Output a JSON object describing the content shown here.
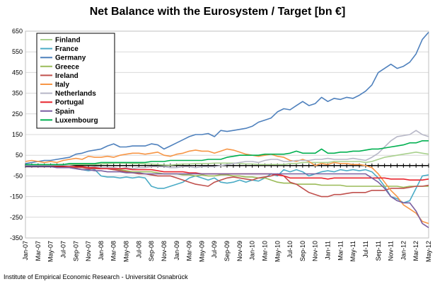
{
  "chart_data": {
    "type": "line",
    "title": "Net Balance with the Eurosystem / Target [bn €]",
    "footer": "Institute of Empirical Economic Research - Universität Osnabrück",
    "ylim": [
      -350,
      650
    ],
    "yticks": [
      650,
      550,
      450,
      350,
      250,
      150,
      50,
      -50,
      -150,
      -250,
      -350
    ],
    "grid": true,
    "legend_position": "top-left",
    "x": [
      "Jan-07",
      "Feb-07",
      "Mar-07",
      "Apr-07",
      "May-07",
      "Jun-07",
      "Jul-07",
      "Aug-07",
      "Sep-07",
      "Oct-07",
      "Nov-07",
      "Dec-07",
      "Jan-08",
      "Feb-08",
      "Mar-08",
      "Apr-08",
      "May-08",
      "Jun-08",
      "Jul-08",
      "Aug-08",
      "Sep-08",
      "Oct-08",
      "Nov-08",
      "Dec-08",
      "Jan-09",
      "Feb-09",
      "Mar-09",
      "Apr-09",
      "May-09",
      "Jun-09",
      "Jul-09",
      "Aug-09",
      "Sep-09",
      "Oct-09",
      "Nov-09",
      "Dec-09",
      "Jan-10",
      "Feb-10",
      "Mar-10",
      "Apr-10",
      "May-10",
      "Jun-10",
      "Jul-10",
      "Aug-10",
      "Sep-10",
      "Oct-10",
      "Nov-10",
      "Dec-10",
      "Jan-11",
      "Feb-11",
      "Mar-11",
      "Apr-11",
      "May-11",
      "Jun-11",
      "Jul-11",
      "Aug-11",
      "Sep-11",
      "Oct-11",
      "Nov-11",
      "Dec-11",
      "Jan-12",
      "Feb-12",
      "Mar-12",
      "Apr-12",
      "May-12"
    ],
    "xtick_labels": [
      "Jan-07",
      "Mar-07",
      "May-07",
      "Jul-07",
      "Sep-07",
      "Nov-07",
      "Jan-08",
      "Mar-08",
      "May-08",
      "Jul-08",
      "Sep-08",
      "Nov-08",
      "Jan-09",
      "Mar-09",
      "May-09",
      "Jul-09",
      "Sep-09",
      "Nov-09",
      "Jan-10",
      "Mar-10",
      "May-10",
      "Jul-10",
      "Sep-10",
      "Nov-10",
      "Jan-11",
      "Mar-11",
      "May-11",
      "Jul-11",
      "Sep-11",
      "Nov-11",
      "Jan-12",
      "Mar-12",
      "May-12"
    ],
    "series": [
      {
        "name": "Finland",
        "color": "#a9d18e",
        "values": [
          5,
          5,
          5,
          5,
          5,
          5,
          5,
          5,
          5,
          5,
          5,
          5,
          8,
          10,
          12,
          12,
          12,
          10,
          10,
          8,
          8,
          5,
          3,
          2,
          5,
          8,
          8,
          10,
          10,
          10,
          12,
          12,
          12,
          12,
          10,
          8,
          8,
          5,
          5,
          5,
          5,
          5,
          10,
          10,
          15,
          15,
          15,
          15,
          15,
          20,
          20,
          20,
          20,
          20,
          15,
          20,
          30,
          40,
          45,
          50,
          55,
          60,
          65,
          60,
          55
        ]
      },
      {
        "name": "France",
        "color": "#4bacc6",
        "values": [
          -5,
          -5,
          -5,
          -5,
          -5,
          -5,
          -5,
          -10,
          -15,
          -20,
          -25,
          -20,
          -50,
          -55,
          -55,
          -60,
          -55,
          -60,
          -55,
          -60,
          -100,
          -110,
          -110,
          -100,
          -90,
          -80,
          -60,
          -50,
          -60,
          -70,
          -60,
          -80,
          -85,
          -80,
          -70,
          -80,
          -70,
          -75,
          -60,
          -40,
          -50,
          -20,
          -30,
          -20,
          -30,
          -50,
          -40,
          -30,
          -25,
          -30,
          -20,
          -25,
          -20,
          -25,
          -20,
          -30,
          -60,
          -100,
          -150,
          -160,
          -180,
          -170,
          -110,
          -50,
          -45
        ]
      },
      {
        "name": "Germany",
        "color": "#4f81bd",
        "values": [
          10,
          15,
          20,
          25,
          25,
          30,
          35,
          40,
          55,
          60,
          70,
          75,
          80,
          95,
          105,
          90,
          90,
          95,
          95,
          95,
          105,
          100,
          80,
          95,
          110,
          125,
          140,
          150,
          150,
          155,
          140,
          170,
          165,
          170,
          175,
          180,
          190,
          210,
          220,
          230,
          260,
          275,
          270,
          290,
          310,
          290,
          300,
          330,
          310,
          325,
          320,
          330,
          325,
          340,
          360,
          390,
          450,
          470,
          490,
          470,
          480,
          500,
          540,
          610,
          645
        ]
      },
      {
        "name": "Greece",
        "color": "#9bbb59",
        "values": [
          -5,
          -5,
          -5,
          -5,
          -5,
          -5,
          -5,
          -5,
          -10,
          -10,
          -10,
          -10,
          -15,
          -15,
          -20,
          -20,
          -25,
          -30,
          -30,
          -30,
          -30,
          -35,
          -40,
          -40,
          -40,
          -45,
          -45,
          -50,
          -45,
          -50,
          -50,
          -45,
          -45,
          -50,
          -50,
          -55,
          -55,
          -60,
          -60,
          -70,
          -80,
          -85,
          -85,
          -90,
          -90,
          -90,
          -90,
          -95,
          -95,
          -95,
          -95,
          -100,
          -100,
          -100,
          -100,
          -100,
          -100,
          -100,
          -100,
          -100,
          -105,
          -100,
          -100,
          -100,
          -100
        ]
      },
      {
        "name": "Ireland",
        "color": "#c0504d",
        "values": [
          -5,
          -5,
          -5,
          -5,
          -5,
          -5,
          -5,
          -5,
          -10,
          -10,
          -15,
          -15,
          -15,
          -15,
          -20,
          -25,
          -30,
          -35,
          -40,
          -40,
          -45,
          -50,
          -50,
          -50,
          -60,
          -70,
          -80,
          -90,
          -95,
          -100,
          -80,
          -70,
          -60,
          -55,
          -60,
          -65,
          -70,
          -60,
          -55,
          -50,
          -40,
          -50,
          -80,
          -90,
          -110,
          -130,
          -140,
          -150,
          -150,
          -140,
          -140,
          -135,
          -130,
          -130,
          -130,
          -120,
          -120,
          -120,
          -110,
          -110,
          -110,
          -105,
          -100,
          -100,
          -95
        ]
      },
      {
        "name": "Italy",
        "color": "#f79646",
        "values": [
          20,
          25,
          20,
          15,
          20,
          15,
          25,
          30,
          35,
          30,
          45,
          40,
          40,
          45,
          40,
          50,
          55,
          60,
          60,
          55,
          60,
          65,
          50,
          45,
          55,
          60,
          70,
          75,
          70,
          70,
          60,
          70,
          80,
          75,
          65,
          55,
          50,
          45,
          50,
          55,
          45,
          40,
          25,
          20,
          30,
          20,
          0,
          10,
          5,
          15,
          10,
          10,
          5,
          5,
          0,
          -10,
          -40,
          -80,
          -120,
          -150,
          -190,
          -210,
          -230,
          -270,
          -280
        ]
      },
      {
        "name": "Netherlands",
        "color": "#b7b7c7",
        "values": [
          2,
          2,
          2,
          2,
          2,
          2,
          2,
          0,
          -5,
          -5,
          -10,
          -5,
          -10,
          -10,
          -10,
          -15,
          -10,
          -15,
          -10,
          -10,
          -5,
          -5,
          -5,
          -10,
          -10,
          -5,
          -5,
          -10,
          -5,
          -5,
          -5,
          0,
          5,
          10,
          15,
          20,
          20,
          15,
          25,
          30,
          30,
          20,
          20,
          25,
          25,
          25,
          30,
          30,
          35,
          30,
          30,
          30,
          35,
          30,
          25,
          40,
          60,
          90,
          120,
          140,
          145,
          150,
          170,
          150,
          140
        ]
      },
      {
        "name": "Portugal",
        "color": "#e8262f",
        "values": [
          -5,
          -5,
          -5,
          -5,
          -5,
          -5,
          -5,
          -5,
          -5,
          -5,
          -10,
          -10,
          -15,
          -15,
          -15,
          -15,
          -15,
          -20,
          -20,
          -20,
          -20,
          -25,
          -30,
          -30,
          -30,
          -30,
          -35,
          -35,
          -40,
          -40,
          -40,
          -40,
          -40,
          -40,
          -40,
          -40,
          -40,
          -40,
          -40,
          -40,
          -45,
          -50,
          -60,
          -60,
          -60,
          -60,
          -60,
          -60,
          -65,
          -60,
          -60,
          -60,
          -60,
          -60,
          -60,
          -60,
          -60,
          -60,
          -65,
          -65,
          -65,
          -70,
          -70,
          -70,
          -65
        ]
      },
      {
        "name": "Spain",
        "color": "#7b5fa0",
        "values": [
          -5,
          -5,
          -5,
          -5,
          -5,
          -10,
          -10,
          -10,
          -15,
          -20,
          -20,
          -25,
          -25,
          -30,
          -30,
          -30,
          -35,
          -35,
          -35,
          -40,
          -40,
          -40,
          -40,
          -40,
          -40,
          -40,
          -40,
          -40,
          -40,
          -40,
          -40,
          -40,
          -40,
          -40,
          -40,
          -40,
          -40,
          -40,
          -40,
          -40,
          -40,
          -40,
          -40,
          -40,
          -40,
          -40,
          -40,
          -40,
          -40,
          -40,
          -40,
          -40,
          -40,
          -40,
          -40,
          -60,
          -80,
          -110,
          -150,
          -170,
          -180,
          -180,
          -220,
          -280,
          -300
        ]
      },
      {
        "name": "Luxembourg",
        "color": "#00b050",
        "values": [
          5,
          5,
          5,
          5,
          5,
          5,
          5,
          10,
          10,
          10,
          10,
          10,
          15,
          15,
          15,
          15,
          15,
          15,
          15,
          15,
          20,
          20,
          20,
          25,
          25,
          25,
          25,
          25,
          25,
          30,
          30,
          30,
          40,
          45,
          50,
          50,
          50,
          50,
          55,
          55,
          55,
          55,
          60,
          70,
          60,
          60,
          60,
          80,
          60,
          60,
          65,
          65,
          70,
          70,
          75,
          80,
          80,
          85,
          90,
          95,
          100,
          110,
          110,
          120,
          120
        ]
      }
    ]
  }
}
